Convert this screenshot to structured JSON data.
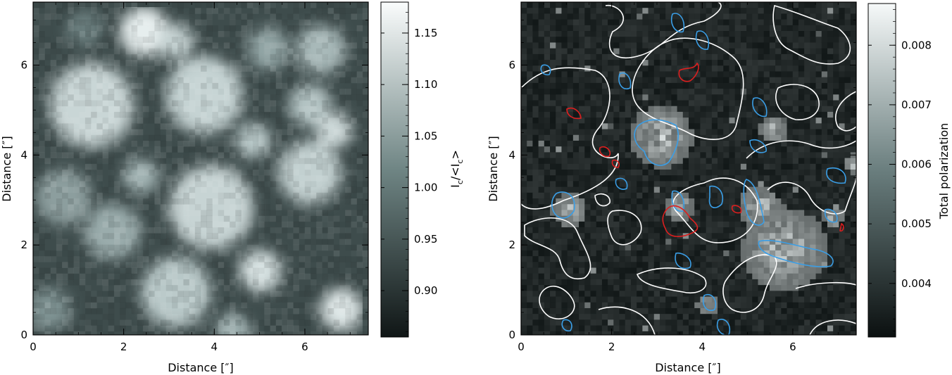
{
  "chart_data": [
    {
      "type": "heatmap",
      "panel": "left",
      "xlabel": "Distance [″]",
      "ylabel": "Distance [″]",
      "xlim": [
        0,
        7.4
      ],
      "ylim": [
        0,
        7.4
      ],
      "x_ticks": [
        0,
        2,
        4,
        6
      ],
      "y_ticks": [
        0,
        2,
        4,
        6
      ],
      "colormap": "gray",
      "colorbar": {
        "label": "I_c/<I_c>",
        "label_parts": [
          "I",
          "c",
          "/<I",
          "c",
          ">"
        ],
        "range": [
          0.855,
          1.18
        ],
        "ticks": [
          0.9,
          0.95,
          1.0,
          1.05,
          1.1,
          1.15
        ],
        "tick_labels": [
          "0.90",
          "0.95",
          "1.00",
          "1.05",
          "1.10",
          "1.15"
        ]
      },
      "grid": false
    },
    {
      "type": "heatmap",
      "panel": "right",
      "xlabel": "Distance [″]",
      "ylabel": "Distance [″]",
      "xlim": [
        0,
        7.4
      ],
      "ylim": [
        0,
        7.4
      ],
      "x_ticks": [
        0,
        2,
        4,
        6
      ],
      "y_ticks": [
        0,
        2,
        4,
        6
      ],
      "colormap": "gray",
      "colorbar": {
        "label": "Total polarization",
        "range": [
          0.0031,
          0.0087
        ],
        "ticks": [
          0.004,
          0.005,
          0.006,
          0.007,
          0.008
        ],
        "tick_labels": [
          "0.004",
          "0.005",
          "0.006",
          "0.007",
          "0.008"
        ]
      },
      "overlays": {
        "white_contours": "continuum intensity contour (granule boundaries)",
        "blue_contours": "positive polarity field",
        "red_contours": "negative polarity field"
      },
      "colors": {
        "white_contour": "#ffffff",
        "blue_contour": "#3a9ee6",
        "red_contour": "#dd1f1f"
      },
      "grid": false
    }
  ]
}
